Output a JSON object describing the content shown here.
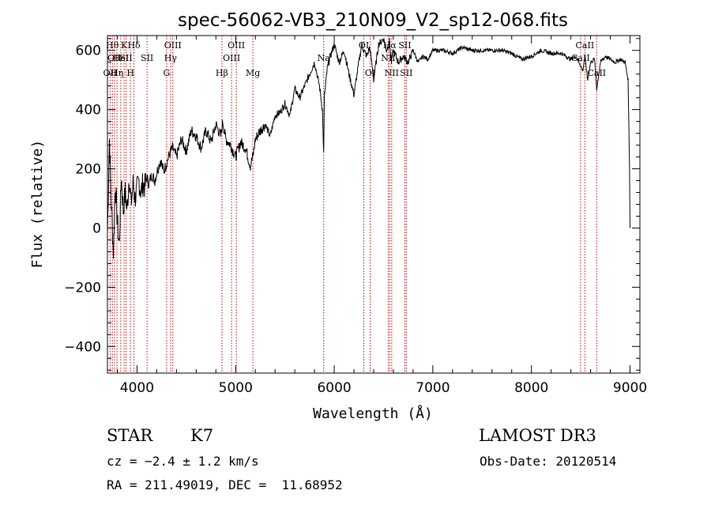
{
  "chart_data": {
    "type": "line",
    "title": "spec-56062-VB3_210N09_V2_sp12-068.fits",
    "xlabel": "Wavelength (Å)",
    "ylabel": "Flux (relative)",
    "xlim": [
      3700,
      9100
    ],
    "ylim": [
      -490,
      650
    ],
    "x_ticks": [
      4000,
      5000,
      6000,
      7000,
      8000,
      9000
    ],
    "y_ticks": [
      -400,
      -200,
      0,
      200,
      400,
      600
    ],
    "grid": false,
    "series_color": "#000000",
    "line_color": "#cc0000",
    "series": [
      {
        "x": [
          3700,
          3720,
          3740,
          3760,
          3780,
          3800,
          3820,
          3840,
          3860,
          3880,
          3900,
          3920,
          3940,
          3960,
          3980,
          4000,
          4020,
          4040,
          4060,
          4080,
          4100,
          4120,
          4150,
          4180,
          4210,
          4240,
          4270,
          4300,
          4330,
          4360,
          4400,
          4450,
          4500,
          4550,
          4600,
          4650,
          4700,
          4750,
          4800,
          4850,
          4870,
          4900,
          4950,
          5000,
          5050,
          5100,
          5150,
          5180,
          5200,
          5250,
          5300,
          5350,
          5400,
          5450,
          5500,
          5550,
          5600,
          5650,
          5700,
          5750,
          5800,
          5850,
          5880,
          5893,
          5900,
          5910,
          5930,
          5960,
          6000,
          6050,
          6100,
          6150,
          6200,
          6250,
          6280,
          6300,
          6330,
          6360,
          6380,
          6400,
          6450,
          6500,
          6530,
          6560,
          6580,
          6600,
          6650,
          6700,
          6750,
          6800,
          6850,
          6900,
          6950,
          7000,
          7100,
          7200,
          7300,
          7400,
          7500,
          7600,
          7700,
          7800,
          7900,
          8000,
          8100,
          8200,
          8300,
          8400,
          8450,
          8498,
          8520,
          8542,
          8570,
          8600,
          8640,
          8662,
          8700,
          8750,
          8800,
          8850,
          8900,
          8950,
          8980,
          8995,
          9000
        ],
        "values": [
          -20,
          300,
          80,
          -80,
          150,
          20,
          -60,
          180,
          60,
          120,
          60,
          180,
          80,
          150,
          100,
          130,
          160,
          120,
          150,
          140,
          170,
          150,
          180,
          160,
          200,
          230,
          190,
          220,
          250,
          270,
          240,
          300,
          260,
          330,
          310,
          270,
          330,
          290,
          350,
          310,
          360,
          300,
          280,
          240,
          290,
          270,
          210,
          250,
          300,
          330,
          350,
          310,
          380,
          390,
          420,
          380,
          470,
          440,
          480,
          520,
          560,
          480,
          400,
          250,
          450,
          470,
          540,
          580,
          620,
          560,
          600,
          520,
          450,
          560,
          620,
          600,
          580,
          610,
          560,
          500,
          620,
          640,
          600,
          630,
          560,
          600,
          560,
          580,
          560,
          600,
          560,
          580,
          570,
          600,
          600,
          590,
          610,
          600,
          600,
          600,
          600,
          590,
          570,
          580,
          600,
          590,
          590,
          570,
          580,
          550,
          530,
          580,
          500,
          560,
          570,
          470,
          560,
          580,
          570,
          560,
          570,
          560,
          500,
          200,
          0
        ]
      }
    ],
    "lines": [
      {
        "x": 3727,
        "row": 2,
        "label": "OII"
      },
      {
        "x": 3750,
        "row": 0,
        "label": "Hθ"
      },
      {
        "x": 3771,
        "row": 1,
        "label": "OII"
      },
      {
        "x": 3797,
        "row": 2,
        "label": "Hη"
      },
      {
        "x": 3835,
        "row": 1,
        "label": "HeI"
      },
      {
        "x": 3869,
        "row": 0,
        "label": "K"
      },
      {
        "x": 3889,
        "row": 1,
        "label": "SII"
      },
      {
        "x": 3934,
        "row": 2,
        "label": "H"
      },
      {
        "x": 3969,
        "row": 0,
        "label": "Hδ"
      },
      {
        "x": 4102,
        "row": 1,
        "label": "SII"
      },
      {
        "x": 4300,
        "row": 2,
        "label": "G"
      },
      {
        "x": 4340,
        "row": 1,
        "label": "Hγ"
      },
      {
        "x": 4363,
        "row": 0,
        "label": "OIII"
      },
      {
        "x": 4861,
        "row": 2,
        "label": "Hβ"
      },
      {
        "x": 4959,
        "row": 1,
        "label": "OIII"
      },
      {
        "x": 5007,
        "row": 0,
        "label": "OIII"
      },
      {
        "x": 5175,
        "row": 2,
        "label": "Mg"
      },
      {
        "x": 5893,
        "row": 1,
        "label": "Na"
      },
      {
        "x": 6300,
        "row": 0,
        "label": "OI"
      },
      {
        "x": 6364,
        "row": 2,
        "label": "OI"
      },
      {
        "x": 6548,
        "row": 1,
        "label": "NII"
      },
      {
        "x": 6563,
        "row": 0,
        "label": "Hα"
      },
      {
        "x": 6583,
        "row": 2,
        "label": "NII"
      },
      {
        "x": 6716,
        "row": 0,
        "label": "SII"
      },
      {
        "x": 6731,
        "row": 2,
        "label": "SII"
      },
      {
        "x": 8498,
        "row": 1,
        "label": "CaII"
      },
      {
        "x": 8542,
        "row": 0,
        "label": "CaII"
      },
      {
        "x": 8662,
        "row": 2,
        "label": "CaII"
      }
    ]
  },
  "info": {
    "object_class": "STAR",
    "subclass": "K7",
    "survey": "LAMOST DR3",
    "cz": "cz = −2.4 ± 1.2 km/s",
    "obs_date": "Obs-Date: 20120514",
    "coords": "RA = 211.49019, DEC =  11.68952"
  }
}
